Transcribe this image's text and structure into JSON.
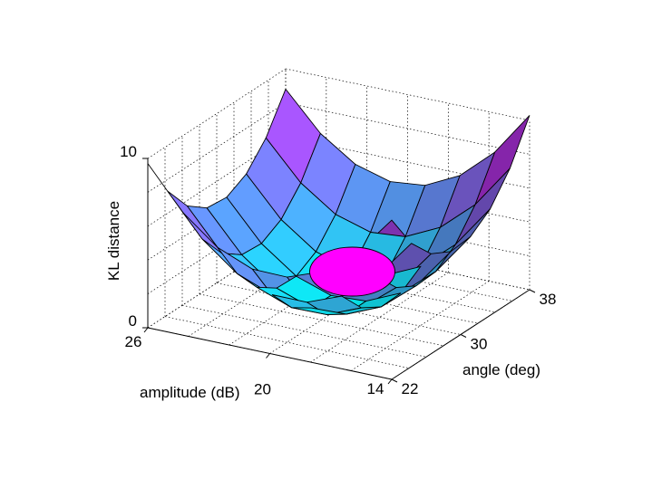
{
  "chart_data": {
    "type": "surface",
    "x_axis": {
      "label": "amplitude (dB)",
      "ticks": [
        "26",
        "20",
        "14"
      ],
      "range": [
        14,
        26
      ]
    },
    "y_axis": {
      "label": "angle (deg)",
      "ticks": [
        "22",
        "30",
        "38"
      ],
      "range": [
        22,
        38
      ]
    },
    "z_axis": {
      "label": "KL distance",
      "ticks": [
        "0",
        "10"
      ],
      "range": [
        0,
        10
      ]
    },
    "grid": true,
    "surface": {
      "description_model": "bowl-shaped paraboloid sampled on an 8x8 grid",
      "amplitude": [
        26,
        24.286,
        22.571,
        20.857,
        19.143,
        17.429,
        15.714,
        14
      ],
      "angle": [
        22,
        24.286,
        26.571,
        28.857,
        31.143,
        33.429,
        35.714,
        38
      ],
      "minimum": {
        "amplitude": 20,
        "angle": 30,
        "value": 0
      },
      "corner_values": {
        "a26_g22": 10,
        "a26_g38": 4.5,
        "a14_g22": 3.5,
        "a14_g38": 10
      },
      "colormap": [
        "#00ffff",
        "#ff00ff"
      ]
    },
    "marker": {
      "shape": "ellipse",
      "amplitude": 20,
      "angle": 30,
      "color": "#ff00ff"
    }
  }
}
